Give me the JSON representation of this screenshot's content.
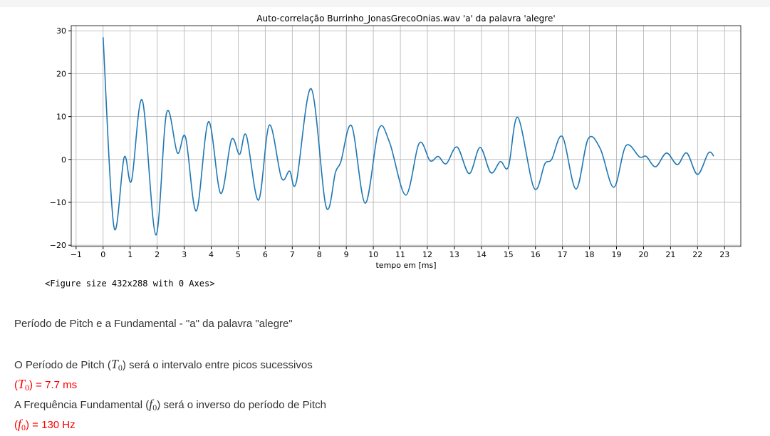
{
  "chart_data": {
    "type": "line",
    "title": "Auto-correlação Burrinho_JonasGrecoOnias.wav 'a' da palavra 'alegre'",
    "x_label": "tempo em [ms]",
    "x": [
      0,
      0.4,
      0.78,
      1.05,
      1.45,
      1.95,
      2.35,
      2.75,
      3.05,
      3.45,
      3.9,
      4.35,
      4.75,
      5.05,
      5.3,
      5.75,
      6.15,
      6.6,
      6.9,
      7.15,
      7.7,
      8.25,
      8.6,
      8.8,
      9.2,
      9.7,
      10.2,
      10.6,
      11.2,
      11.7,
      12.1,
      12.4,
      12.7,
      13.1,
      13.55,
      13.95,
      14.35,
      14.7,
      15.0,
      15.35,
      15.95,
      16.35,
      16.6,
      17.0,
      17.5,
      17.95,
      18.4,
      18.9,
      19.35,
      19.85,
      20.1,
      20.45,
      20.85,
      21.25,
      21.6,
      22.0,
      22.4,
      22.6
    ],
    "series": [
      {
        "color": "#1f77b4",
        "values": [
          28.5,
          -15.7,
          0.5,
          -5,
          13.8,
          -17.6,
          10.9,
          1.5,
          5.2,
          -12,
          8.8,
          -7.9,
          4.6,
          1.2,
          5.6,
          -9.5,
          8,
          -4.3,
          -2.7,
          -5.3,
          16.5,
          -11,
          -3,
          -0.5,
          7.8,
          -10.2,
          7,
          4,
          -8.3,
          3.8,
          -0.3,
          0.7,
          -1,
          2.9,
          -3.3,
          2.8,
          -3.1,
          -0.5,
          -1.7,
          9.8,
          -6.7,
          -1,
          0,
          5.3,
          -6.9,
          4.8,
          2.5,
          -6.5,
          3.2,
          0.6,
          0.7,
          -1.7,
          1.5,
          -1.2,
          1.5,
          -3.5,
          1.5,
          0.8
        ]
      }
    ],
    "xlim": [
      -1.18,
      23.6
    ],
    "ylim": [
      -20.3,
      31.2
    ],
    "xticks": [
      {
        "value": -1,
        "label": "−1"
      },
      0,
      1,
      2,
      3,
      4,
      5,
      6,
      7,
      8,
      9,
      10,
      11,
      12,
      13,
      14,
      15,
      16,
      17,
      18,
      19,
      20,
      21,
      22,
      23
    ],
    "yticks": [
      {
        "value": -20,
        "label": "−20"
      },
      {
        "value": -10,
        "label": "−10"
      },
      0,
      10,
      20,
      30
    ],
    "grid": true
  },
  "output": {
    "figure_text": "<Figure size 432x288 with 0 Axes>"
  },
  "notes": {
    "heading": "Período de Pitch e a Fundamental - \"a\" da palavra \"alegre\"",
    "lines": [
      {
        "before": "O Período de Pitch (",
        "symbol": "T",
        "sub": "0",
        "after": ") será o intervalo entre picos sucessivos",
        "color": "#333333"
      },
      {
        "before": "(",
        "symbol": "T",
        "sub": "0",
        "after": ") = 7.7 ms",
        "color": "#ff0000"
      },
      {
        "before": "A Frequência Fundamental (",
        "symbol": "f",
        "sub": "0",
        "after": ") será o inverso do período de Pitch",
        "color": "#333333"
      },
      {
        "before": "(",
        "symbol": "f",
        "sub": "0",
        "after": ") = 130 Hz",
        "color": "#ff0000"
      }
    ]
  }
}
